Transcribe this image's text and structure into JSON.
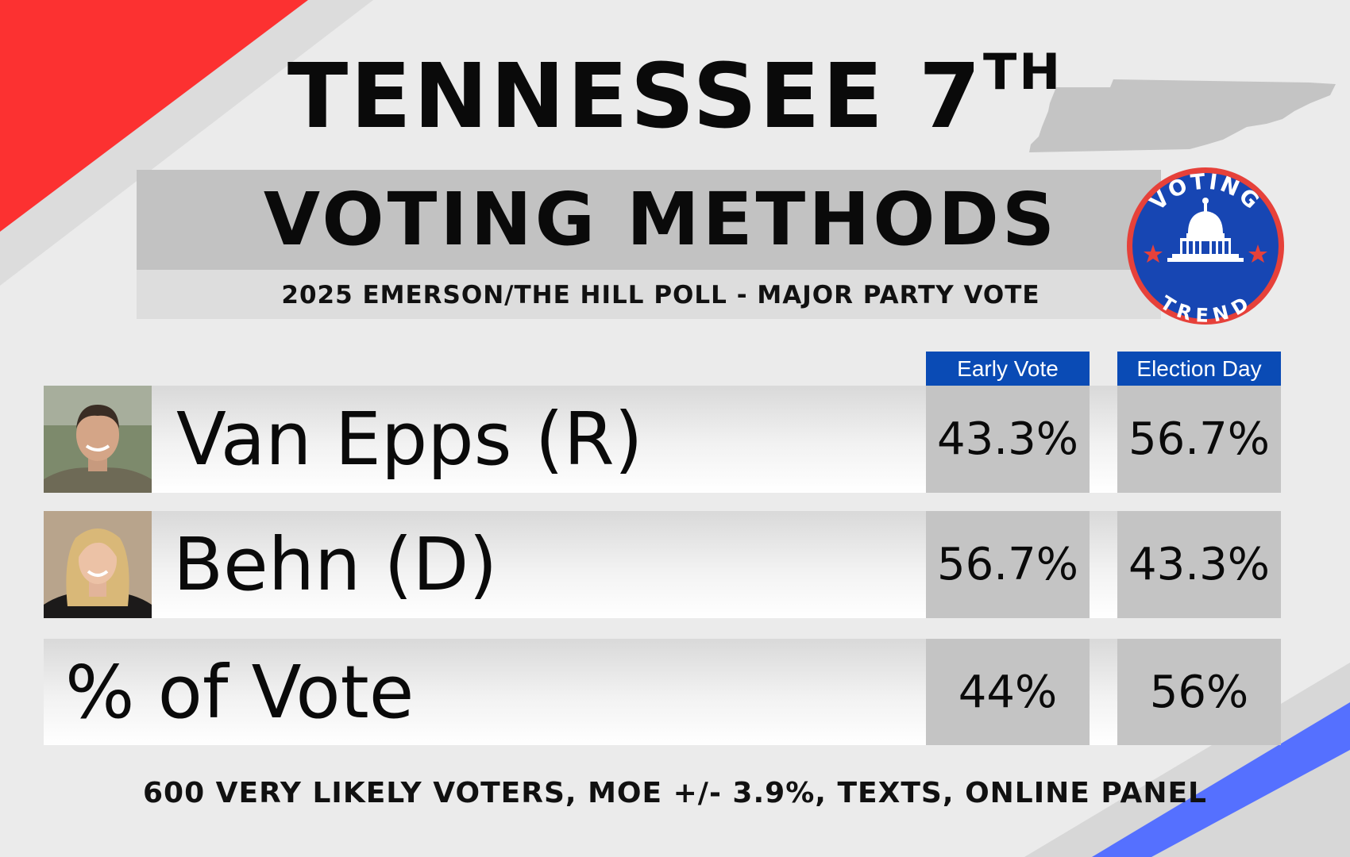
{
  "header": {
    "title": "TENNESSEE 7",
    "title_suffix": "TH",
    "subtitle": "VOTING METHODS",
    "source": "2025 EMERSON/THE HILL POLL - MAJOR PARTY VOTE"
  },
  "logo": {
    "top_text": "VOTING",
    "bottom_text": "TREND"
  },
  "columns": {
    "early": "Early Vote",
    "election_day": "Election Day"
  },
  "rows": [
    {
      "name": "Van Epps (R)",
      "early": "43.3%",
      "election_day": "56.7%"
    },
    {
      "name": "Behn (D)",
      "early": "56.7%",
      "election_day": "43.3%"
    },
    {
      "name": "% of Vote",
      "early": "44%",
      "election_day": "56%"
    }
  ],
  "footer": "600 VERY LIKELY VOTERS, MOE +/- 3.9%, TEXTS, ONLINE PANEL",
  "colors": {
    "red": "#fc3131",
    "blue": "#5570ff",
    "header_blue": "#0a4bb5",
    "logo_blue": "#1746b3",
    "logo_ring": "#e6413a"
  }
}
